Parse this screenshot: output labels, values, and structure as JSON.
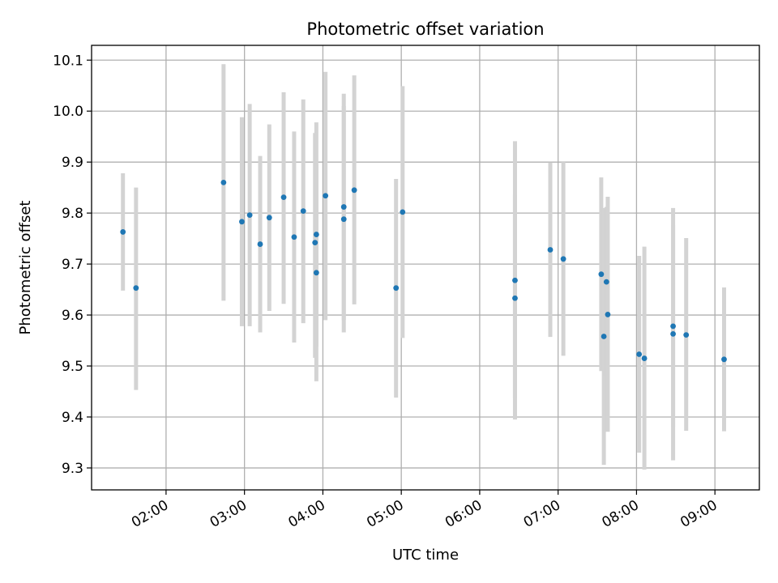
{
  "chart_data": {
    "type": "scatter",
    "title": "Photometric offset variation",
    "xlabel": "UTC time",
    "ylabel": "Photometric offset",
    "grid": true,
    "x_tick_labels": [
      "02:00",
      "03:00",
      "04:00",
      "05:00",
      "06:00",
      "07:00",
      "08:00",
      "09:00"
    ],
    "y_tick_labels": [
      "9.3",
      "9.4",
      "9.5",
      "9.6",
      "9.7",
      "9.8",
      "9.9",
      "10.0",
      "10.1"
    ],
    "xlim": [
      "01:03",
      "09:34"
    ],
    "ylim": [
      9.257,
      10.129
    ],
    "colors": {
      "point": "#1f77b4",
      "errorbar": "#d3d3d3",
      "grid": "#b0b0b0"
    },
    "series": [
      {
        "points": [
          {
            "x": "01:27",
            "y": 9.763,
            "err_low": 9.648,
            "err_high": 9.878
          },
          {
            "x": "01:37",
            "y": 9.653,
            "err_low": 9.453,
            "err_high": 9.85
          },
          {
            "x": "02:44",
            "y": 9.86,
            "err_low": 9.628,
            "err_high": 10.092
          },
          {
            "x": "02:58",
            "y": 9.783,
            "err_low": 9.578,
            "err_high": 9.988
          },
          {
            "x": "03:04",
            "y": 9.796,
            "err_low": 9.578,
            "err_high": 10.014
          },
          {
            "x": "03:12",
            "y": 9.739,
            "err_low": 9.566,
            "err_high": 9.912
          },
          {
            "x": "03:19",
            "y": 9.791,
            "err_low": 9.608,
            "err_high": 9.974
          },
          {
            "x": "03:30",
            "y": 9.831,
            "err_low": 9.622,
            "err_high": 10.037
          },
          {
            "x": "03:38",
            "y": 9.753,
            "err_low": 9.546,
            "err_high": 9.96
          },
          {
            "x": "03:45",
            "y": 9.804,
            "err_low": 9.584,
            "err_high": 10.023
          },
          {
            "x": "03:54",
            "y": 9.742,
            "err_low": 9.516,
            "err_high": 9.957
          },
          {
            "x": "03:55",
            "y": 9.758,
            "err_low": 9.538,
            "err_high": 9.978
          },
          {
            "x": "03:55",
            "y": 9.683,
            "err_low": 9.47,
            "err_high": 9.896
          },
          {
            "x": "04:02",
            "y": 9.834,
            "err_low": 9.59,
            "err_high": 10.077
          },
          {
            "x": "04:16",
            "y": 9.812,
            "err_low": 9.59,
            "err_high": 10.034
          },
          {
            "x": "04:16",
            "y": 9.788,
            "err_low": 9.566,
            "err_high": 10.01
          },
          {
            "x": "04:24",
            "y": 9.845,
            "err_low": 9.621,
            "err_high": 10.07
          },
          {
            "x": "04:56",
            "y": 9.653,
            "err_low": 9.438,
            "err_high": 9.867
          },
          {
            "x": "05:01",
            "y": 9.802,
            "err_low": 9.555,
            "err_high": 10.049
          },
          {
            "x": "06:27",
            "y": 9.668,
            "err_low": 9.437,
            "err_high": 9.836
          },
          {
            "x": "06:27",
            "y": 9.633,
            "err_low": 9.395,
            "err_high": 9.941
          },
          {
            "x": "06:54",
            "y": 9.728,
            "err_low": 9.557,
            "err_high": 9.899
          },
          {
            "x": "07:04",
            "y": 9.71,
            "err_low": 9.52,
            "err_high": 9.9
          },
          {
            "x": "07:33",
            "y": 9.68,
            "err_low": 9.49,
            "err_high": 9.87
          },
          {
            "x": "07:35",
            "y": 9.558,
            "err_low": 9.306,
            "err_high": 9.81
          },
          {
            "x": "07:37",
            "y": 9.665,
            "err_low": 9.48,
            "err_high": 9.812
          },
          {
            "x": "07:38",
            "y": 9.601,
            "err_low": 9.371,
            "err_high": 9.832
          },
          {
            "x": "08:02",
            "y": 9.523,
            "err_low": 9.33,
            "err_high": 9.716
          },
          {
            "x": "08:06",
            "y": 9.515,
            "err_low": 9.297,
            "err_high": 9.734
          },
          {
            "x": "08:28",
            "y": 9.578,
            "err_low": 9.38,
            "err_high": 9.776
          },
          {
            "x": "08:28",
            "y": 9.563,
            "err_low": 9.315,
            "err_high": 9.81
          },
          {
            "x": "08:38",
            "y": 9.561,
            "err_low": 9.373,
            "err_high": 9.751
          },
          {
            "x": "09:07",
            "y": 9.513,
            "err_low": 9.372,
            "err_high": 9.654
          }
        ]
      }
    ]
  }
}
